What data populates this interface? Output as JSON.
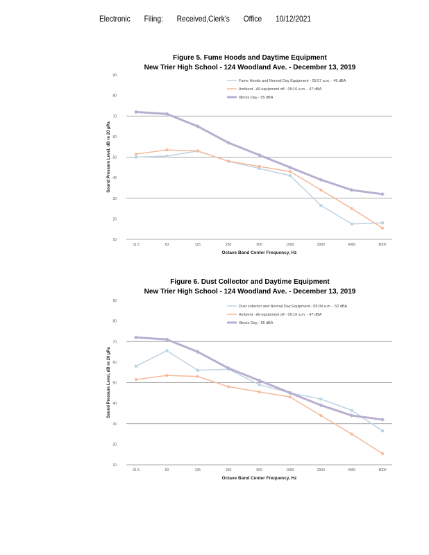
{
  "header": {
    "word1": "Electronic",
    "word2": "Filing:",
    "word3": "Received,Clerk's",
    "word4": "Office",
    "date": "10/12/2021"
  },
  "chart_data": [
    {
      "type": "line",
      "title": "Figure 5.  Fume Hoods and Daytime Equipment",
      "subtitle": "New Trier High School - 124 Woodland Ave. - December 13, 2019",
      "xlabel": "Octave Band Center Frequency, Hz",
      "ylabel": "Sound Pressure Level, dB re 20 µPa",
      "categories": [
        "31.5",
        "63",
        "125",
        "250",
        "500",
        "1000",
        "2000",
        "4000",
        "8000"
      ],
      "yticks": [
        10,
        20,
        30,
        40,
        50,
        60,
        70,
        80,
        90
      ],
      "ylim": [
        10,
        90
      ],
      "grid": true,
      "legend": "top-right",
      "series": [
        {
          "name": "Fume Hoods and Normal Day Equipment - 05:57 a.m. - 49 dBA",
          "color": "#bcd3e2",
          "marker": "square",
          "values": [
            50,
            50.5,
            53,
            48,
            44.5,
            41,
            26.5,
            17.5,
            18
          ]
        },
        {
          "name": "Ambient - All equipment off - 05:16 a.m. - 47 dBA",
          "color": "#f5b899",
          "marker": "circle",
          "values": [
            51.5,
            53.5,
            53,
            48,
            45.5,
            43,
            34,
            25,
            15.5
          ]
        },
        {
          "name": "Illinois Day - 55 dBA",
          "color": "#b8aed0",
          "marker": "diamond",
          "values": [
            72,
            71,
            65,
            57,
            51,
            45,
            39,
            34,
            32
          ]
        }
      ]
    },
    {
      "type": "line",
      "title": "Figure 6.  Dust Collector and Daytime Equipment",
      "subtitle": "New Trier High School - 124 Woodland Ave. - December 13, 2019",
      "xlabel": "Octave Band Center Frequency, Hz",
      "ylabel": "Sound Pressure Level, dB re 20 µPa",
      "categories": [
        "31.5",
        "63",
        "125",
        "250",
        "500",
        "1000",
        "2000",
        "4000",
        "8000"
      ],
      "yticks": [
        10,
        20,
        30,
        40,
        50,
        60,
        70,
        80,
        90
      ],
      "ylim": [
        10,
        90
      ],
      "grid": true,
      "legend": "top-right",
      "series": [
        {
          "name": "Dust collector and Normal Day Equipment - 05:04 a.m. - 52 dBA",
          "color": "#bcd3e2",
          "marker": "square",
          "values": [
            58,
            65.5,
            56,
            56.5,
            49,
            45,
            42,
            36.5,
            26.5
          ]
        },
        {
          "name": "Ambient - All equipment off - 05:16 a.m. - 47 dBA",
          "color": "#f5b899",
          "marker": "circle",
          "values": [
            51.5,
            53.5,
            53,
            48,
            45.5,
            43,
            34,
            25,
            15.5
          ]
        },
        {
          "name": "Illinois Day - 55 dBA",
          "color": "#b8aed0",
          "marker": "diamond",
          "values": [
            72,
            71,
            65,
            57,
            51,
            45,
            39,
            34,
            32
          ]
        }
      ]
    }
  ]
}
